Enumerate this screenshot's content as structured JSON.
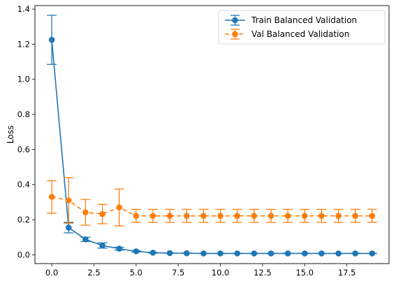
{
  "chart_data": {
    "type": "line",
    "title": "",
    "xlabel": "",
    "ylabel": "Loss",
    "xlim": [
      -1,
      20
    ],
    "ylim": [
      -0.05,
      1.42
    ],
    "xticks": [
      0,
      2.5,
      5,
      7.5,
      10,
      12.5,
      15,
      17.5
    ],
    "xtick_labels": [
      "0.0",
      "2.5",
      "5.0",
      "7.5",
      "10.0",
      "12.5",
      "15.0",
      "17.5"
    ],
    "yticks": [
      0,
      0.2,
      0.4,
      0.6,
      0.8,
      1.0,
      1.2,
      1.4
    ],
    "ytick_labels": [
      "0.0",
      "0.2",
      "0.4",
      "0.6",
      "0.8",
      "1.0",
      "1.2",
      "1.4"
    ],
    "grid": false,
    "legend_position": "top-right",
    "x": [
      0,
      1,
      2,
      3,
      4,
      5,
      6,
      7,
      8,
      9,
      10,
      11,
      12,
      13,
      14,
      15,
      16,
      17,
      18,
      19
    ],
    "series": [
      {
        "name": "Train Balanced Validation",
        "color": "#1f77b4",
        "line_style": "solid",
        "values": [
          1.225,
          0.155,
          0.088,
          0.053,
          0.035,
          0.02,
          0.012,
          0.01,
          0.009,
          0.008,
          0.008,
          0.008,
          0.008,
          0.008,
          0.008,
          0.008,
          0.008,
          0.008,
          0.008,
          0.008
        ],
        "errors": [
          0.14,
          0.03,
          0.012,
          0.015,
          0.008,
          0.004,
          0.002,
          0.001,
          0.001,
          0.001,
          0.001,
          0.001,
          0.001,
          0.001,
          0.001,
          0.001,
          0.001,
          0.001,
          0.001,
          0.001
        ]
      },
      {
        "name": "Val Balanced Validation",
        "color": "#ff7f0e",
        "line_style": "dashed",
        "values": [
          0.33,
          0.31,
          0.242,
          0.232,
          0.27,
          0.222,
          0.222,
          0.222,
          0.222,
          0.222,
          0.222,
          0.222,
          0.222,
          0.222,
          0.222,
          0.222,
          0.222,
          0.222,
          0.222,
          0.222
        ],
        "errors": [
          0.093,
          0.13,
          0.073,
          0.055,
          0.105,
          0.037,
          0.037,
          0.037,
          0.037,
          0.037,
          0.037,
          0.037,
          0.037,
          0.037,
          0.037,
          0.037,
          0.037,
          0.037,
          0.037,
          0.037
        ]
      }
    ]
  }
}
